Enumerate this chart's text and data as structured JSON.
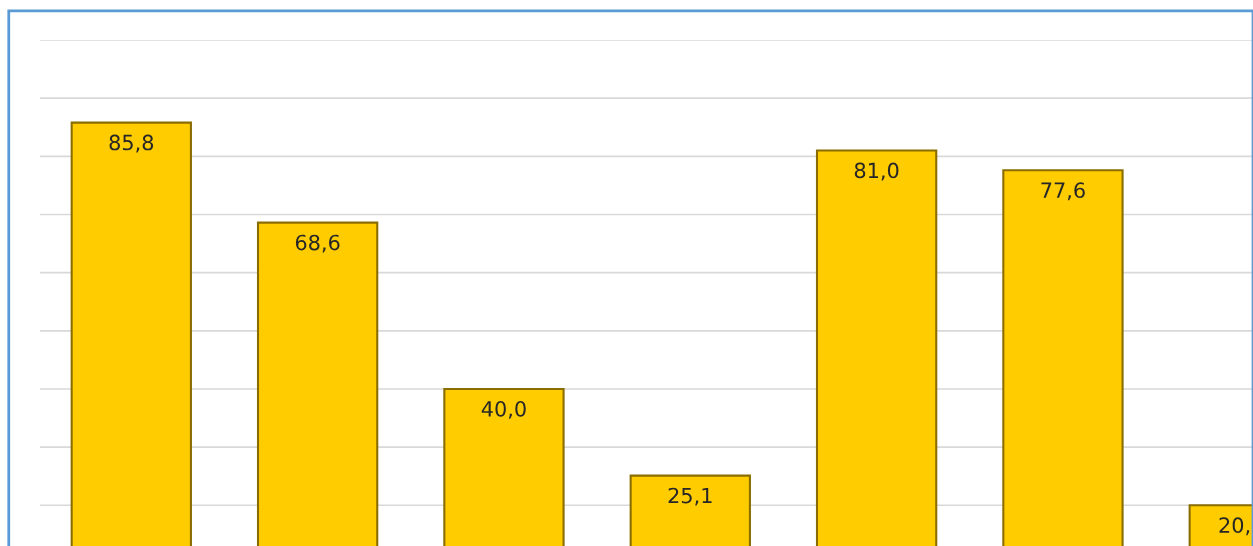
{
  "chart_data": {
    "type": "bar",
    "categories": [
      null,
      null,
      null,
      null,
      null,
      null,
      null
    ],
    "values": [
      85.8,
      68.6,
      40.0,
      25.1,
      81.0,
      77.6,
      20
    ],
    "value_labels": [
      "85,8",
      "68,6",
      "40,0",
      "25,1",
      "81,0",
      "77,6",
      "20,"
    ],
    "color": "#ffcc00",
    "ylim": [
      13,
      100
    ],
    "yticks": [
      {
        "value": 20,
        "label": null
      },
      {
        "value": 30,
        "label": null
      },
      {
        "value": 40,
        "label": null
      },
      {
        "value": 50,
        "label": null
      },
      {
        "value": 60,
        "label": null
      },
      {
        "value": 70,
        "label": null
      },
      {
        "value": 80,
        "label": null
      },
      {
        "value": 90,
        "label": null
      },
      {
        "value": 100,
        "label": null
      }
    ],
    "grid": "y"
  }
}
